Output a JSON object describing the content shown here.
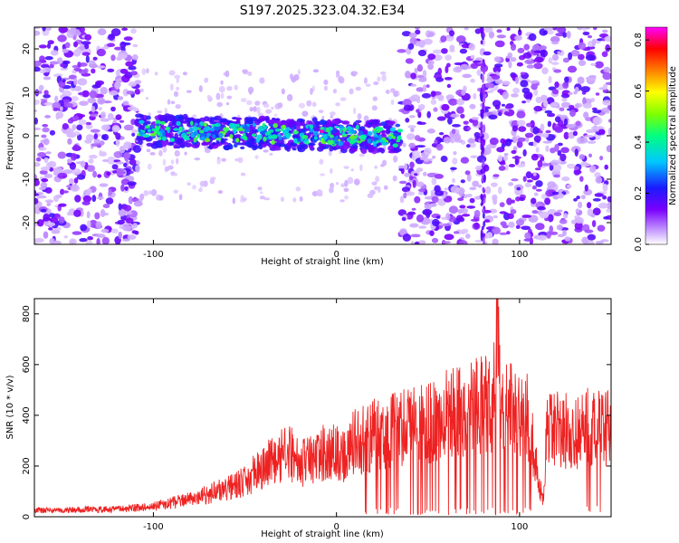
{
  "figure_title": "S197.2025.323.04.32.E34",
  "chart_data": [
    {
      "type": "heatmap",
      "title": "S197.2025.323.04.32.E34",
      "xlabel": "Height of straight line (km)",
      "ylabel": "Frequency (Hz)",
      "xlim": [
        -165,
        150
      ],
      "ylim": [
        -25,
        25
      ],
      "xticks": [
        -100,
        0,
        100
      ],
      "xtick_labels": [
        "-100",
        "0",
        "100"
      ],
      "yticks": [
        -20,
        -10,
        0,
        10,
        20
      ],
      "ytick_labels": [
        "-20",
        "-10",
        "0",
        "10",
        "20"
      ],
      "colorbar": {
        "label": "Normalized spectral amplitude",
        "range": [
          0.0,
          0.85
        ],
        "ticks": [
          0.0,
          0.2,
          0.4,
          0.6,
          0.8
        ],
        "tick_labels": [
          "0.0",
          "0.2",
          "0.4",
          "0.6",
          "0.8"
        ],
        "colormap": [
          "#ffffff",
          "#c9a3ff",
          "#7a00ff",
          "#1a1aff",
          "#00c8ff",
          "#00ff80",
          "#80ff00",
          "#ffff00",
          "#ff8000",
          "#ff0000",
          "#ff00ff"
        ]
      },
      "regions": [
        {
          "x_range": [
            -165,
            -108
          ],
          "freq_range": [
            -25,
            25
          ],
          "level": 0.15,
          "description": "noise"
        },
        {
          "x_range": [
            -108,
            35
          ],
          "freq_range": [
            -3,
            3
          ],
          "level": 0.35,
          "description": "signal band"
        },
        {
          "x_range": [
            35,
            150
          ],
          "freq_range": [
            -25,
            25
          ],
          "level": 0.15,
          "description": "noise"
        }
      ],
      "peak": {
        "x": -8,
        "freq": 1,
        "level": 0.85
      }
    },
    {
      "type": "line",
      "xlabel": "Height of straight line (km)",
      "ylabel": "SNR (10 * v/v)",
      "xlim": [
        -165,
        150
      ],
      "ylim": [
        0,
        860
      ],
      "xticks": [
        -100,
        0,
        100
      ],
      "xtick_labels": [
        "-100",
        "0",
        "100"
      ],
      "yticks": [
        0,
        200,
        400,
        600,
        800
      ],
      "ytick_labels": [
        "0",
        "200",
        "400",
        "600",
        "800"
      ],
      "series": [
        {
          "name": "SNR",
          "color": "#ee2222",
          "x": [
            -165,
            -150,
            -140,
            -130,
            -120,
            -110,
            -100,
            -90,
            -80,
            -70,
            -60,
            -50,
            -45,
            -40,
            -35,
            -30,
            -25,
            -20,
            -15,
            -10,
            -5,
            0,
            5,
            10,
            15,
            20,
            25,
            30,
            35,
            40,
            45,
            50,
            55,
            60,
            65,
            70,
            75,
            80,
            85,
            88,
            90,
            95,
            100,
            105,
            110,
            113,
            115,
            120,
            125,
            130,
            135,
            140,
            145,
            150
          ],
          "y": [
            25,
            25,
            30,
            28,
            30,
            35,
            40,
            55,
            70,
            90,
            110,
            140,
            170,
            200,
            220,
            240,
            250,
            200,
            230,
            240,
            260,
            250,
            240,
            300,
            310,
            320,
            330,
            340,
            350,
            360,
            370,
            380,
            390,
            400,
            410,
            420,
            430,
            440,
            450,
            860,
            430,
            420,
            400,
            390,
            150,
            60,
            330,
            350,
            340,
            330,
            350,
            360,
            340,
            350
          ]
        }
      ]
    }
  ]
}
